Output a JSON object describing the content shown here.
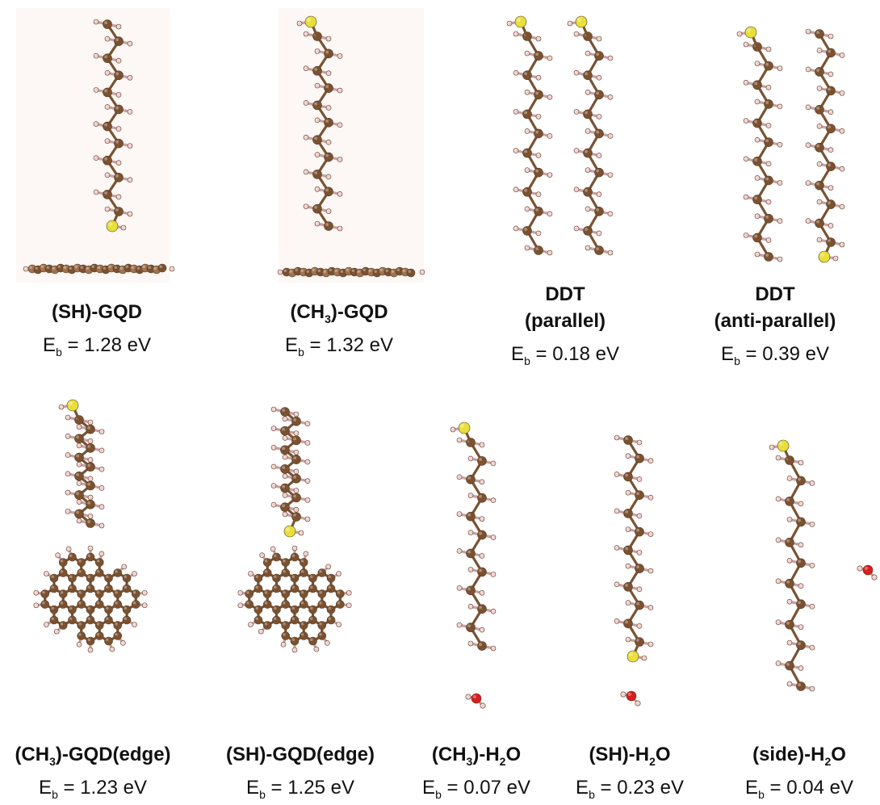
{
  "panels": [
    {
      "label_lines": [
        [
          "(SH)-GQD"
        ]
      ],
      "energy": [
        "E",
        "b",
        " = 1.28 eV"
      ]
    },
    {
      "label_lines": [
        [
          "(CH",
          "3",
          ")-GQD"
        ]
      ],
      "energy": [
        "E",
        "b",
        " = 1.32 eV"
      ]
    },
    {
      "label_lines": [
        [
          "DDT"
        ],
        [
          "(parallel)"
        ]
      ],
      "energy": [
        "E",
        "b",
        " = 0.18 eV"
      ]
    },
    {
      "label_lines": [
        [
          "DDT"
        ],
        [
          "(anti-parallel)"
        ]
      ],
      "energy": [
        "E",
        "b",
        " = 0.39 eV"
      ]
    },
    {
      "label_lines": [
        [
          "(CH",
          "3",
          ")-GQD(edge)"
        ]
      ],
      "energy": [
        "E",
        "b",
        " = 1.23 eV"
      ]
    },
    {
      "label_lines": [
        [
          "(SH)-GQD(edge)"
        ]
      ],
      "energy": [
        "E",
        "b",
        " = 1.25 eV"
      ]
    },
    {
      "label_lines": [
        [
          "(CH",
          "3",
          ")-H",
          "2",
          "O"
        ]
      ],
      "energy": [
        "E",
        "b",
        " = 0.07 eV"
      ]
    },
    {
      "label_lines": [
        [
          "(SH)-H",
          "2",
          "O"
        ]
      ],
      "energy": [
        "E",
        "b",
        " = 0.23 eV"
      ]
    },
    {
      "label_lines": [
        [
          "(side)-H",
          "2",
          "O"
        ]
      ],
      "energy": [
        "E",
        "b",
        " = 0.04 eV"
      ]
    }
  ]
}
